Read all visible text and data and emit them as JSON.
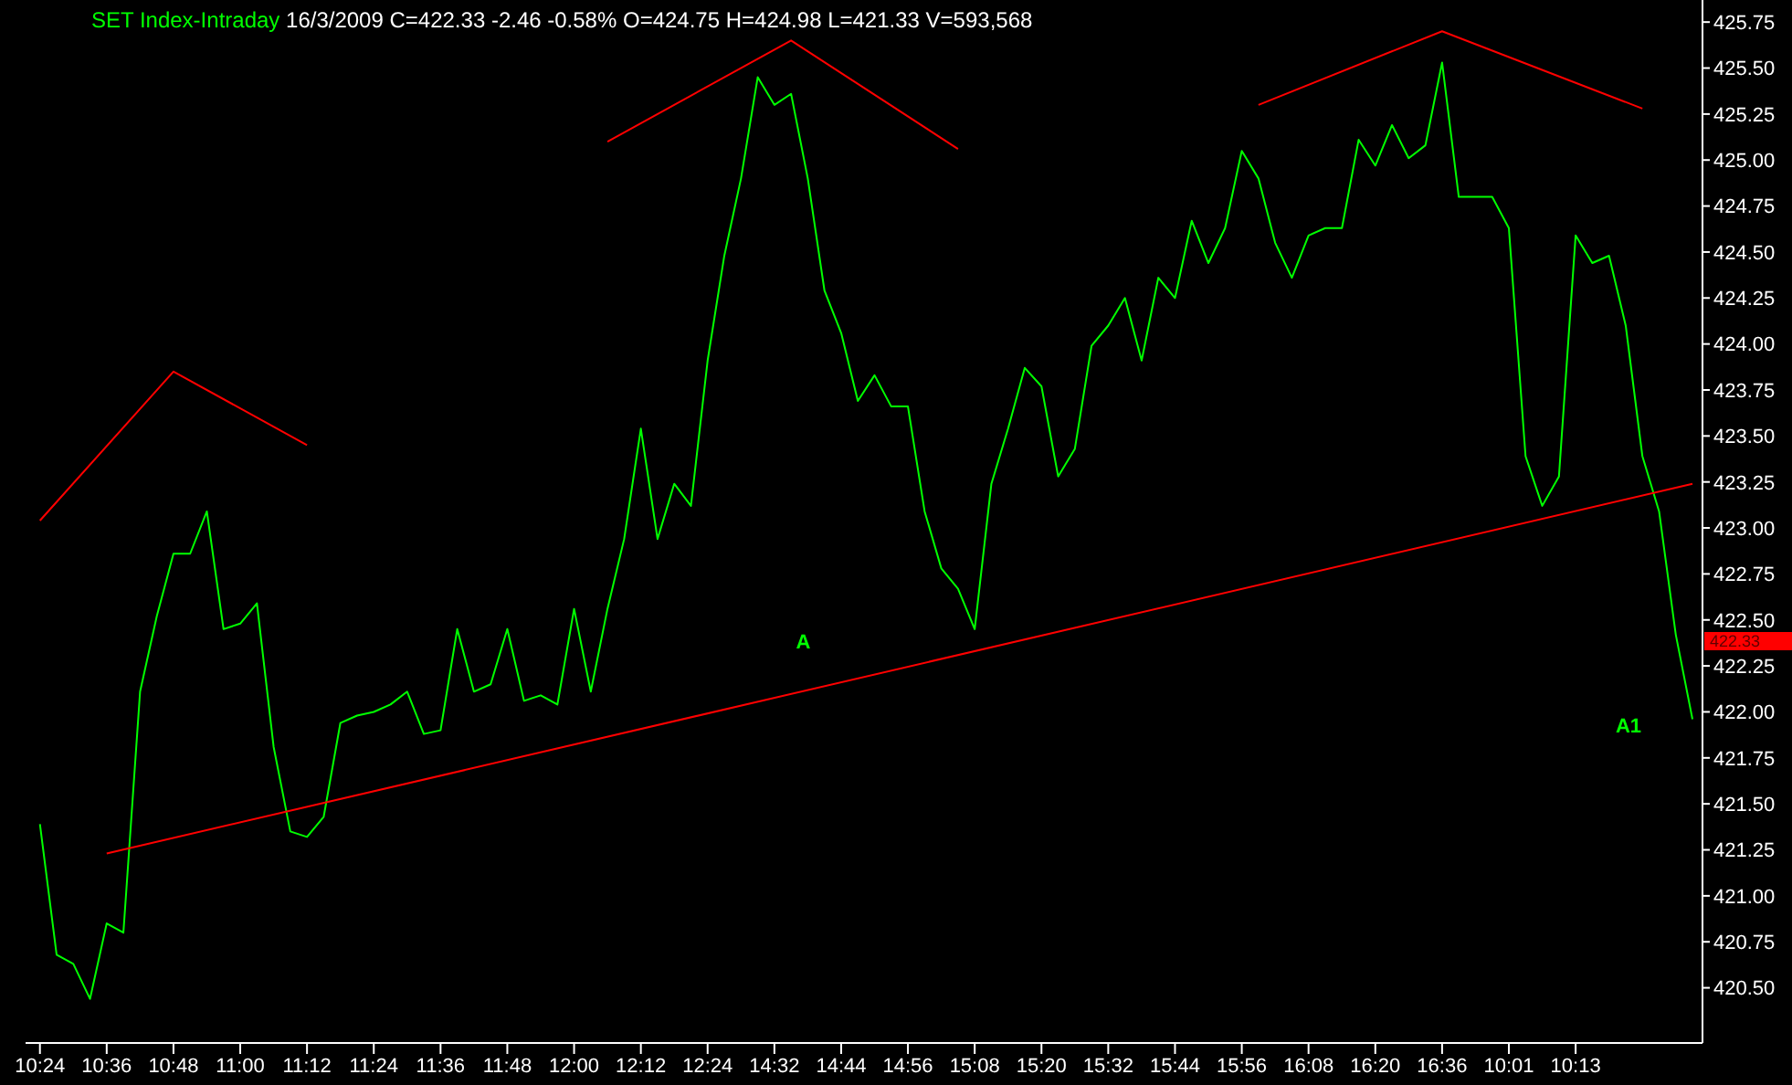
{
  "chart_data": {
    "type": "line",
    "title": "SET Index-Intraday",
    "subtitle": "16/3/2009 C=422.33 -2.46 -0.58% O=424.75 H=424.98 L=421.33 V=593,568",
    "categories": [
      "10:24",
      null,
      null,
      null,
      "10:36",
      null,
      null,
      null,
      "10:48",
      null,
      null,
      null,
      "11:00",
      null,
      null,
      null,
      "11:12",
      null,
      null,
      null,
      "11:24",
      null,
      null,
      null,
      "11:36",
      null,
      null,
      null,
      "11:48",
      null,
      null,
      null,
      "12:00",
      null,
      null,
      null,
      "12:12",
      null,
      null,
      null,
      "12:24",
      null,
      null,
      null,
      "14:32",
      null,
      null,
      null,
      "14:44",
      null,
      null,
      null,
      "14:56",
      null,
      null,
      null,
      "15:08",
      null,
      null,
      null,
      "15:20",
      null,
      null,
      null,
      "15:32",
      null,
      null,
      null,
      "15:44",
      null,
      null,
      null,
      "15:56",
      null,
      null,
      null,
      "16:08",
      null,
      null,
      null,
      "16:20",
      null,
      null,
      null,
      "16:36",
      null,
      null,
      null,
      "10:01",
      null,
      null,
      null,
      "10:13",
      null,
      null,
      null,
      null,
      null,
      null,
      null
    ],
    "series": [
      {
        "type": "line",
        "color": "#00ff00",
        "values": [
          421.39,
          420.68,
          420.63,
          420.44,
          420.85,
          420.8,
          422.11,
          422.52,
          422.86,
          422.86,
          423.09,
          422.45,
          422.48,
          422.59,
          421.81,
          421.35,
          421.32,
          421.43,
          421.94,
          421.98,
          422.0,
          422.04,
          422.11,
          421.88,
          421.9,
          422.45,
          422.11,
          422.15,
          422.45,
          422.06,
          422.09,
          422.04,
          422.56,
          422.11,
          422.56,
          422.94,
          423.54,
          422.94,
          423.24,
          423.12,
          423.91,
          424.48,
          424.9,
          425.45,
          425.3,
          425.36,
          424.9,
          424.29,
          424.06,
          423.69,
          423.83,
          423.66,
          423.66,
          423.09,
          422.78,
          422.67,
          422.45,
          423.24,
          423.54,
          423.87,
          423.77,
          423.28,
          423.43,
          423.99,
          424.1,
          424.25,
          423.91,
          424.36,
          424.25,
          424.67,
          424.44,
          424.63,
          425.05,
          424.9,
          424.55,
          424.36,
          424.59,
          424.63,
          424.63,
          425.11,
          424.97,
          425.19,
          425.01,
          425.08,
          425.53,
          424.8,
          424.8,
          424.8,
          424.63,
          423.39,
          423.12,
          423.28,
          424.59,
          424.44,
          424.48,
          424.1,
          423.39,
          423.09,
          422.42,
          421.96
        ]
      },
      {
        "type": "line",
        "color": "#ff0000",
        "values": [
          null,
          null,
          null,
          null,
          421.23,
          null,
          null,
          null,
          null,
          null,
          null,
          null,
          null,
          null,
          null,
          null,
          null,
          null,
          null,
          null,
          null,
          null,
          null,
          null,
          null,
          null,
          null,
          null,
          null,
          null,
          null,
          null,
          null,
          null,
          null,
          null,
          null,
          null,
          null,
          null,
          null,
          null,
          null,
          null,
          null,
          null,
          null,
          null,
          null,
          null,
          null,
          null,
          null,
          null,
          null,
          null,
          null,
          null,
          null,
          null,
          null,
          null,
          null,
          null,
          null,
          null,
          null,
          null,
          null,
          null,
          null,
          null,
          null,
          null,
          null,
          null,
          null,
          null,
          null,
          null,
          null,
          null,
          null,
          null,
          null,
          null,
          null,
          null,
          null,
          null,
          null,
          null,
          null,
          null,
          null,
          null,
          null,
          null,
          null,
          423.24
        ]
      },
      {
        "type": "line",
        "color": "#ff0000",
        "values": [
          423.04,
          null,
          null,
          null,
          null,
          null,
          null,
          null,
          423.85,
          null,
          null,
          null,
          null,
          null,
          null,
          null,
          423.45,
          null,
          null,
          null,
          null,
          null,
          null,
          null,
          null,
          null,
          null,
          null,
          null,
          null,
          null,
          null,
          null,
          null,
          null,
          null,
          null,
          null,
          null,
          null,
          null,
          null,
          null,
          null,
          null,
          null,
          null,
          null,
          null,
          null,
          null,
          null,
          null,
          null,
          null,
          null,
          null,
          null,
          null,
          null,
          null,
          null,
          null,
          null,
          null,
          null,
          null,
          null,
          null,
          null,
          null,
          null,
          null,
          null,
          null,
          null,
          null,
          null,
          null,
          null,
          null,
          null,
          null,
          null,
          null,
          null,
          null,
          null,
          null,
          null,
          null,
          null,
          null,
          null,
          null,
          null,
          null,
          null,
          null,
          null
        ]
      },
      {
        "type": "line",
        "color": "#ff0000",
        "values": [
          null,
          null,
          null,
          null,
          null,
          null,
          null,
          null,
          null,
          null,
          null,
          null,
          null,
          null,
          null,
          null,
          null,
          null,
          null,
          null,
          null,
          null,
          null,
          null,
          null,
          null,
          null,
          null,
          null,
          null,
          null,
          null,
          null,
          null,
          425.1,
          null,
          null,
          null,
          null,
          null,
          null,
          null,
          null,
          null,
          null,
          425.65,
          null,
          null,
          null,
          null,
          null,
          null,
          null,
          null,
          null,
          425.06,
          null,
          null,
          null,
          null,
          null,
          null,
          null,
          null,
          null,
          null,
          null,
          null,
          null,
          null,
          null,
          null,
          null,
          null,
          null,
          null,
          null,
          null,
          null,
          null,
          null,
          null,
          null,
          null,
          null,
          null,
          null,
          null,
          null,
          null,
          null,
          null,
          null,
          null,
          null,
          null,
          null,
          null,
          null,
          null
        ]
      },
      {
        "type": "line",
        "color": "#ff0000",
        "values": [
          null,
          null,
          null,
          null,
          null,
          null,
          null,
          null,
          null,
          null,
          null,
          null,
          null,
          null,
          null,
          null,
          null,
          null,
          null,
          null,
          null,
          null,
          null,
          null,
          null,
          null,
          null,
          null,
          null,
          null,
          null,
          null,
          null,
          null,
          null,
          null,
          null,
          null,
          null,
          null,
          null,
          null,
          null,
          null,
          null,
          null,
          null,
          null,
          null,
          null,
          null,
          null,
          null,
          null,
          null,
          null,
          null,
          null,
          null,
          null,
          null,
          null,
          null,
          null,
          null,
          null,
          null,
          null,
          null,
          null,
          null,
          null,
          null,
          425.3,
          null,
          null,
          null,
          null,
          null,
          null,
          null,
          null,
          null,
          null,
          425.7,
          null,
          null,
          null,
          null,
          null,
          null,
          null,
          null,
          null,
          null,
          null,
          425.28,
          null,
          null,
          null
        ]
      }
    ],
    "ylim": [
      420.2,
      425.87
    ],
    "yticks": [
      {
        "value": 420.5,
        "label": "420.50"
      },
      {
        "value": 420.75,
        "label": "420.75"
      },
      {
        "value": 421,
        "label": "421.00"
      },
      {
        "value": 421.25,
        "label": "421.25"
      },
      {
        "value": 421.5,
        "label": "421.50"
      },
      {
        "value": 421.75,
        "label": "421.75"
      },
      {
        "value": 422,
        "label": "422.00"
      },
      {
        "value": 422.25,
        "label": "422.25"
      },
      {
        "value": 422.5,
        "label": "422.50"
      },
      {
        "value": 422.75,
        "label": "422.75"
      },
      {
        "value": 423,
        "label": "423.00"
      },
      {
        "value": 423.25,
        "label": "423.25"
      },
      {
        "value": 423.5,
        "label": "423.50"
      },
      {
        "value": 423.75,
        "label": "423.75"
      },
      {
        "value": 424,
        "label": "424.00"
      },
      {
        "value": 424.25,
        "label": "424.25"
      },
      {
        "value": 424.5,
        "label": "424.50"
      },
      {
        "value": 424.75,
        "label": "424.75"
      },
      {
        "value": 425,
        "label": "425.00"
      },
      {
        "value": 425.25,
        "label": "425.25"
      },
      {
        "value": 425.5,
        "label": "425.50"
      },
      {
        "value": 425.75,
        "label": "425.75"
      }
    ],
    "annotations": [
      "A",
      "A1",
      "422.33"
    ],
    "marker": "none",
    "line_style": "solid",
    "grid": false,
    "legend": false
  }
}
